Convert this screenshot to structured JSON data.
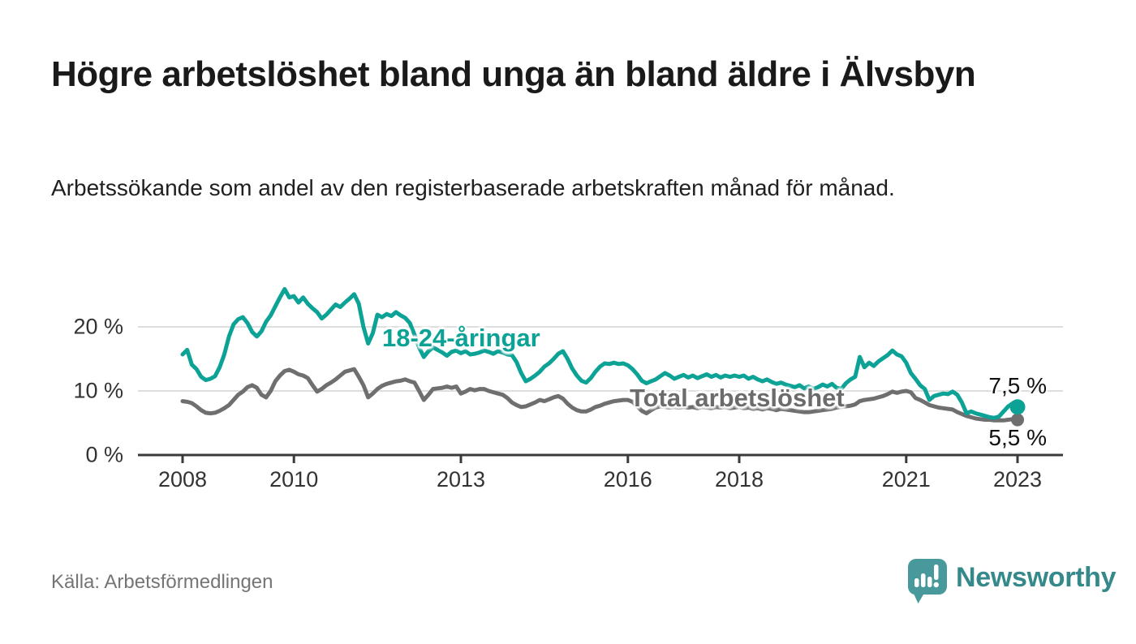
{
  "title": "Högre arbetslöshet bland unga än bland äldre i Älvsbyn",
  "subtitle": "Arbetssökande som andel av den registerbaserade arbetskraften månad för månad.",
  "source": "Källa: Arbetsförmedlingen",
  "branding": {
    "logo_text": "Newsworthy",
    "logo_icon": "speech-bubble-bar-chart-icon",
    "logo_icon_color": "#47999b",
    "logo_text_color": "#35898b"
  },
  "colors": {
    "youth_line": "#0ca295",
    "total_line": "#6f6f6f",
    "axis": "#3a3a3a",
    "grid": "#dedede",
    "tick_text": "#333333",
    "title_text": "#1a1a1a",
    "muted_text": "#757575"
  },
  "chart_data": {
    "type": "line",
    "title": "Högre arbetslöshet bland unga än bland äldre i Älvsbyn",
    "subtitle": "Arbetssökande som andel av den registerbaserade arbetskraften månad för månad.",
    "unit": "%",
    "frequency": "monthly",
    "x_start_year": 2008,
    "x_end_year": 2023,
    "ylim": [
      0,
      27.5
    ],
    "grid": "horizontal",
    "legend_position": "inline-labels",
    "x_ticks": [
      {
        "year": 2008,
        "label": "2008"
      },
      {
        "year": 2010,
        "label": "2010"
      },
      {
        "year": 2013,
        "label": "2013"
      },
      {
        "year": 2016,
        "label": "2016"
      },
      {
        "year": 2018,
        "label": "2018"
      },
      {
        "year": 2021,
        "label": "2021"
      },
      {
        "year": 2023,
        "label": "2023"
      }
    ],
    "y_ticks": [
      {
        "value": 0,
        "label": "0 %"
      },
      {
        "value": 10,
        "label": "10 %"
      },
      {
        "value": 20,
        "label": "20 %"
      }
    ],
    "series": [
      {
        "name": "18-24-åringar",
        "color": "#0ca295",
        "end_value": 7.5,
        "end_label": "7,5 %",
        "values": [
          15.7,
          16.4,
          14.1,
          13.4,
          12.2,
          11.7,
          11.9,
          12.3,
          13.7,
          15.7,
          18.5,
          20.4,
          21.2,
          21.5,
          20.6,
          19.2,
          18.5,
          19.3,
          20.8,
          21.8,
          23.2,
          24.6,
          25.9,
          24.6,
          24.8,
          23.8,
          24.6,
          23.6,
          22.9,
          22.3,
          21.3,
          21.9,
          22.7,
          23.5,
          23.1,
          23.8,
          24.4,
          25.1,
          23.6,
          20.0,
          17.4,
          19.0,
          21.9,
          21.5,
          22.0,
          21.7,
          22.3,
          21.8,
          21.4,
          20.6,
          18.8,
          16.8,
          15.3,
          16.2,
          16.8,
          16.4,
          16.0,
          15.5,
          16.1,
          16.3,
          15.9,
          16.2,
          15.7,
          15.8,
          16.0,
          16.3,
          16.1,
          15.8,
          16.2,
          16.0,
          15.7,
          15.6,
          14.5,
          12.8,
          11.5,
          11.9,
          12.4,
          13.0,
          13.8,
          14.3,
          15.0,
          15.8,
          16.2,
          15.0,
          13.5,
          12.4,
          11.6,
          11.3,
          12.0,
          13.0,
          13.8,
          14.3,
          14.2,
          14.4,
          14.2,
          14.3,
          14.0,
          13.4,
          12.6,
          11.6,
          11.2,
          11.5,
          11.8,
          12.3,
          12.8,
          12.4,
          11.9,
          12.2,
          12.5,
          12.1,
          12.4,
          12.0,
          12.3,
          12.6,
          12.2,
          12.5,
          12.1,
          12.4,
          12.2,
          12.4,
          12.2,
          12.4,
          11.9,
          12.2,
          11.8,
          11.5,
          11.8,
          11.4,
          11.1,
          11.3,
          11.0,
          10.8,
          10.6,
          10.9,
          10.4,
          10.7,
          10.3,
          10.6,
          11.0,
          10.7,
          11.1,
          10.5,
          10.3,
          11.2,
          11.8,
          12.2,
          15.3,
          13.7,
          14.4,
          13.9,
          14.6,
          15.1,
          15.6,
          16.3,
          15.7,
          15.4,
          14.4,
          12.8,
          11.9,
          10.9,
          10.3,
          8.6,
          9.2,
          9.4,
          9.6,
          9.5,
          9.9,
          9.4,
          8.2,
          6.5,
          6.8,
          6.5,
          6.3,
          6.1,
          5.9,
          5.8,
          6.0,
          6.8,
          7.6,
          8.1,
          7.5
        ]
      },
      {
        "name": "Total arbetslöshet",
        "color": "#6f6f6f",
        "end_value": 5.5,
        "end_label": "5,5 %",
        "values": [
          8.4,
          8.3,
          8.1,
          7.6,
          7.0,
          6.6,
          6.5,
          6.6,
          6.9,
          7.3,
          7.8,
          8.6,
          9.4,
          9.9,
          10.6,
          10.9,
          10.5,
          9.4,
          9.0,
          10.0,
          11.5,
          12.4,
          13.1,
          13.3,
          13.0,
          12.6,
          12.4,
          12.0,
          10.9,
          9.9,
          10.3,
          10.9,
          11.3,
          11.8,
          12.4,
          13.0,
          13.2,
          13.4,
          12.2,
          10.9,
          9.0,
          9.6,
          10.3,
          10.8,
          11.1,
          11.3,
          11.5,
          11.6,
          11.8,
          11.5,
          11.3,
          10.0,
          8.6,
          9.4,
          10.3,
          10.4,
          10.5,
          10.7,
          10.5,
          10.7,
          9.6,
          9.9,
          10.3,
          10.1,
          10.3,
          10.3,
          10.0,
          9.8,
          9.6,
          9.4,
          8.9,
          8.2,
          7.8,
          7.5,
          7.6,
          7.9,
          8.2,
          8.6,
          8.4,
          8.7,
          9.0,
          9.2,
          8.8,
          8.0,
          7.4,
          7.0,
          6.8,
          6.8,
          7.1,
          7.5,
          7.7,
          8.0,
          8.2,
          8.4,
          8.5,
          8.6,
          8.6,
          8.3,
          7.6,
          6.9,
          6.5,
          7.0,
          7.4,
          7.6,
          7.5,
          7.4,
          7.5,
          7.4,
          7.5,
          7.4,
          7.5,
          7.3,
          7.5,
          7.4,
          7.3,
          7.5,
          7.4,
          7.5,
          7.3,
          7.4,
          7.5,
          7.3,
          7.4,
          7.2,
          7.3,
          7.1,
          7.3,
          7.2,
          7.0,
          7.2,
          7.1,
          7.0,
          6.9,
          6.8,
          6.7,
          6.7,
          6.8,
          6.9,
          7.0,
          7.1,
          7.2,
          7.4,
          7.5,
          7.6,
          7.7,
          7.9,
          8.4,
          8.6,
          8.7,
          8.8,
          9.0,
          9.2,
          9.5,
          9.9,
          9.7,
          9.9,
          10.0,
          9.8,
          8.9,
          8.6,
          8.2,
          7.8,
          7.6,
          7.4,
          7.3,
          7.2,
          7.1,
          6.7,
          6.4,
          6.1,
          5.9,
          5.7,
          5.6,
          5.5,
          5.5,
          5.4,
          5.4,
          5.4,
          5.5,
          5.6,
          5.5
        ]
      }
    ]
  }
}
